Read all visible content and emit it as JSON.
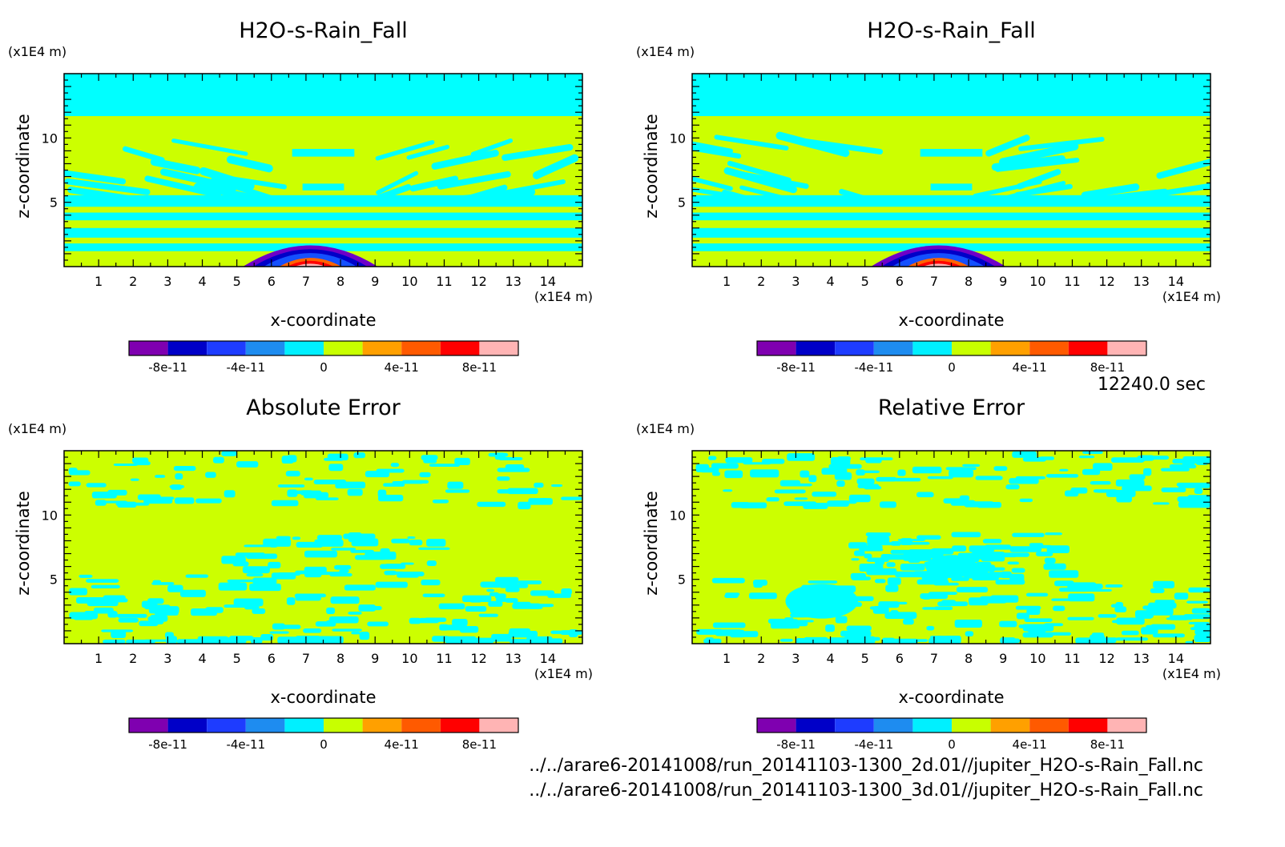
{
  "chart_data": [
    {
      "type": "heatmap",
      "title": "H2O-s-Rain_Fall",
      "xlabel": "x-coordinate",
      "ylabel": "z-coordinate",
      "x_unit": "(x1E4 m)",
      "y_unit": "(x1E4 m)",
      "xlim": [
        0,
        15
      ],
      "ylim": [
        0,
        15
      ],
      "x_ticks": [
        "1",
        "2",
        "3",
        "4",
        "5",
        "6",
        "7",
        "8",
        "9",
        "10",
        "11",
        "12",
        "13",
        "14"
      ],
      "y_ticks": [
        "5",
        "10"
      ],
      "pattern": "field",
      "colorbar": {
        "ticks": [
          "-8e-11",
          "-4e-11",
          "0",
          "4e-11",
          "8e-11"
        ],
        "range": [
          -1e-10,
          1e-10
        ]
      }
    },
    {
      "type": "heatmap",
      "title": "H2O-s-Rain_Fall",
      "xlabel": "x-coordinate",
      "ylabel": "z-coordinate",
      "x_unit": "(x1E4 m)",
      "y_unit": "(x1E4 m)",
      "xlim": [
        0,
        15
      ],
      "ylim": [
        0,
        15
      ],
      "x_ticks": [
        "1",
        "2",
        "3",
        "4",
        "5",
        "6",
        "7",
        "8",
        "9",
        "10",
        "11",
        "12",
        "13",
        "14"
      ],
      "y_ticks": [
        "5",
        "10"
      ],
      "pattern": "field",
      "colorbar": {
        "ticks": [
          "-8e-11",
          "-4e-11",
          "0",
          "4e-11",
          "8e-11"
        ],
        "range": [
          -1e-10,
          1e-10
        ]
      }
    },
    {
      "type": "heatmap",
      "title": "Absolute Error",
      "xlabel": "x-coordinate",
      "ylabel": "z-coordinate",
      "x_unit": "(x1E4 m)",
      "y_unit": "(x1E4 m)",
      "xlim": [
        0,
        15
      ],
      "ylim": [
        0,
        15
      ],
      "x_ticks": [
        "1",
        "2",
        "3",
        "4",
        "5",
        "6",
        "7",
        "8",
        "9",
        "10",
        "11",
        "12",
        "13",
        "14"
      ],
      "y_ticks": [
        "5",
        "10"
      ],
      "pattern": "error-abs",
      "colorbar": {
        "ticks": [
          "-8e-11",
          "-4e-11",
          "0",
          "4e-11",
          "8e-11"
        ],
        "range": [
          -1e-10,
          1e-10
        ]
      }
    },
    {
      "type": "heatmap",
      "title": "Relative Error",
      "xlabel": "x-coordinate",
      "ylabel": "z-coordinate",
      "x_unit": "(x1E4 m)",
      "y_unit": "(x1E4 m)",
      "xlim": [
        0,
        15
      ],
      "ylim": [
        0,
        15
      ],
      "x_ticks": [
        "1",
        "2",
        "3",
        "4",
        "5",
        "6",
        "7",
        "8",
        "9",
        "10",
        "11",
        "12",
        "13",
        "14"
      ],
      "y_ticks": [
        "5",
        "10"
      ],
      "pattern": "error-rel",
      "colorbar": {
        "ticks": [
          "-8e-11",
          "-4e-11",
          "0",
          "4e-11",
          "8e-11"
        ],
        "range": [
          -1e-10,
          1e-10
        ]
      }
    }
  ],
  "colorbar_colors": [
    "#7f00b0",
    "#0000c8",
    "#1e3cff",
    "#1e8cf0",
    "#00f0ff",
    "#c8ff00",
    "#ffa000",
    "#ff5a00",
    "#ff0000",
    "#ffb4b4"
  ],
  "field_colors": {
    "cyan": "#00ffff",
    "yellow": "#ccff00",
    "blue": "#1450ff",
    "navy": "#0000c8",
    "purple": "#6e00c8",
    "red": "#ff0000",
    "orange": "#ff6400",
    "pink": "#ffb4b4"
  },
  "timestamp": "12240.0 sec",
  "files": [
    "../../arare6-20141008/run_20141103-1300_2d.01//jupiter_H2O-s-Rain_Fall.nc",
    "../../arare6-20141008/run_20141103-1300_3d.01//jupiter_H2O-s-Rain_Fall.nc"
  ]
}
